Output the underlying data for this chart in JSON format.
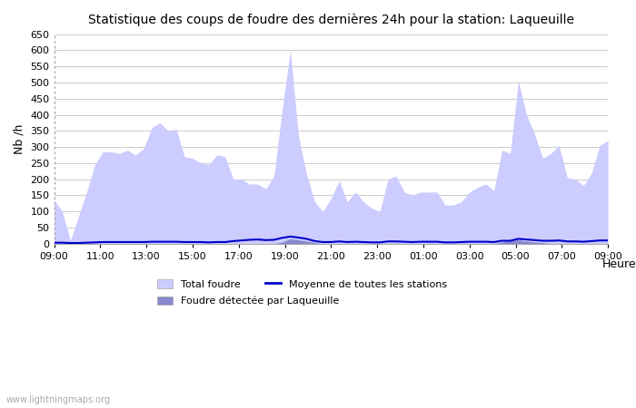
{
  "title": "Statistique des coups de foudre des dernières 24h pour la station: Laqueuille",
  "ylabel": "Nb /h",
  "xlabel": "Heure",
  "ylim": [
    0,
    650
  ],
  "yticks": [
    0,
    50,
    100,
    150,
    200,
    250,
    300,
    350,
    400,
    450,
    500,
    550,
    600,
    650
  ],
  "x_labels": [
    "09:00",
    "11:00",
    "13:00",
    "15:00",
    "17:00",
    "19:00",
    "21:00",
    "23:00",
    "01:00",
    "03:00",
    "05:00",
    "07:00",
    "09:00"
  ],
  "watermark": "www.lightningmaps.org",
  "total_foudre_color": "#ccccff",
  "laqueuille_color": "#8888cc",
  "moyenne_color": "#0000cc",
  "background_color": "#ffffff",
  "grid_color": "#cccccc",
  "total_foudre": [
    135,
    100,
    10,
    85,
    160,
    245,
    285,
    285,
    280,
    290,
    275,
    295,
    360,
    375,
    350,
    355,
    270,
    265,
    250,
    245,
    275,
    270,
    200,
    200,
    185,
    185,
    170,
    210,
    415,
    600,
    335,
    215,
    130,
    100,
    140,
    195,
    130,
    160,
    130,
    110,
    100,
    200,
    210,
    160,
    150,
    160,
    160,
    160,
    120,
    120,
    130,
    160,
    175,
    185,
    165,
    290,
    280,
    505,
    400,
    340,
    265,
    280,
    305,
    205,
    200,
    180,
    220,
    305,
    320
  ],
  "laqueuille": [
    0,
    0,
    0,
    0,
    0,
    0,
    0,
    0,
    0,
    0,
    0,
    0,
    0,
    0,
    0,
    0,
    0,
    0,
    0,
    0,
    0,
    0,
    0,
    0,
    0,
    0,
    0,
    0,
    5,
    15,
    12,
    8,
    3,
    0,
    0,
    0,
    0,
    0,
    0,
    0,
    0,
    0,
    0,
    0,
    0,
    0,
    0,
    0,
    0,
    0,
    0,
    0,
    0,
    0,
    0,
    5,
    10,
    12,
    8,
    5,
    3,
    0,
    0,
    0,
    0,
    0,
    0,
    0,
    0
  ],
  "moyenne": [
    3,
    3,
    2,
    2,
    3,
    4,
    5,
    5,
    5,
    5,
    5,
    5,
    6,
    6,
    6,
    6,
    5,
    5,
    5,
    4,
    5,
    5,
    8,
    10,
    12,
    13,
    11,
    12,
    18,
    22,
    19,
    15,
    8,
    5,
    5,
    7,
    5,
    6,
    5,
    4,
    4,
    7,
    7,
    6,
    5,
    6,
    6,
    6,
    4,
    4,
    5,
    6,
    6,
    6,
    5,
    9,
    9,
    15,
    13,
    11,
    9,
    9,
    10,
    7,
    7,
    6,
    8,
    10,
    10
  ],
  "n_points": 69
}
